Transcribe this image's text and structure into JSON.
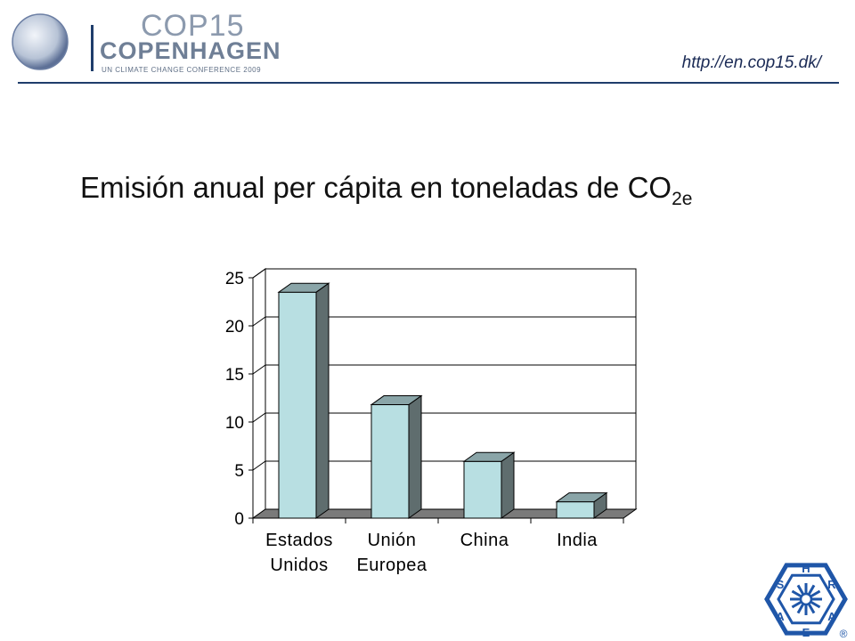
{
  "header": {
    "logo_cop": "COP15",
    "logo_city": "COPENHAGEN",
    "logo_tagline": "UN CLIMATE CHANGE CONFERENCE 2009",
    "source_url": "http://en.cop15.dk/"
  },
  "title": {
    "main": "Emisión anual per cápita en toneladas de CO",
    "subscript": "2e"
  },
  "chart_data": {
    "type": "bar",
    "style": "3d-column",
    "categories": [
      [
        "Estados",
        "Unidos"
      ],
      [
        "Unión",
        "Europea"
      ],
      [
        "China"
      ],
      [
        "India"
      ]
    ],
    "values": [
      23.5,
      11.8,
      5.9,
      1.7
    ],
    "ylim": [
      0,
      25
    ],
    "yticks": [
      0,
      5,
      10,
      15,
      20,
      25
    ],
    "grid": true,
    "legend": "none",
    "colors": {
      "bar_front": "#b8dfe2",
      "bar_side": "#5f6d6e",
      "bar_top": "#8aa5a8",
      "floor": "#7a7a7a"
    }
  },
  "badge": {
    "letters": [
      "H",
      "R",
      "A",
      "E",
      "A",
      "S"
    ],
    "mark": "®"
  }
}
